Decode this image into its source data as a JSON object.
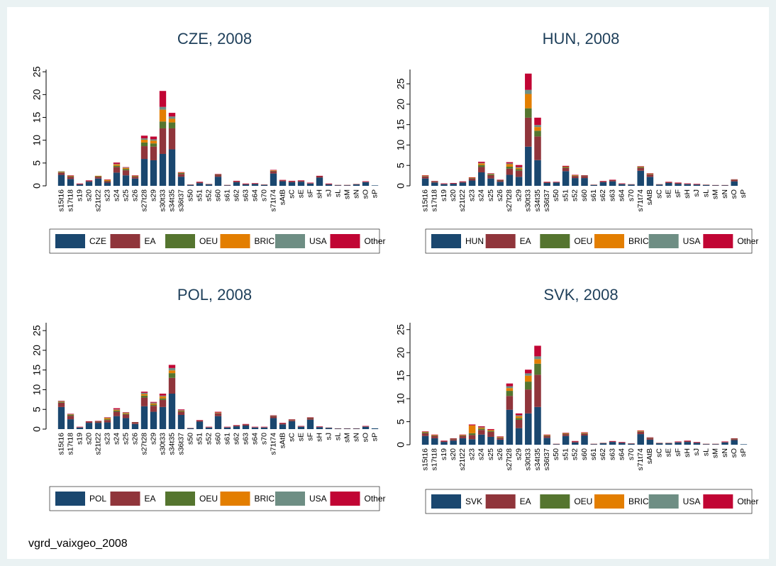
{
  "chart_data": [
    {
      "type": "bar",
      "stacked": true,
      "title": "CZE, 2008",
      "categories": [
        "s15t16",
        "s17t18",
        "s19",
        "s20",
        "s21t22",
        "s23",
        "s24",
        "s25",
        "s26",
        "s27t28",
        "s29",
        "s30t33",
        "s34t35",
        "s36t37",
        "s50",
        "s51",
        "s52",
        "s60",
        "s61",
        "s62",
        "s63",
        "s64",
        "s70",
        "s71t74",
        "sAtB",
        "sC",
        "sE",
        "sF",
        "sH",
        "sJ",
        "sL",
        "sM",
        "sN",
        "sO",
        "sP"
      ],
      "ylim": [
        0,
        25.5
      ],
      "yticks": [
        0,
        5,
        10,
        15,
        20,
        25
      ],
      "series": [
        {
          "name": "CZE",
          "color": "#1a476f",
          "values": [
            2.4,
            1.5,
            0.3,
            0.9,
            1.6,
            0.7,
            2.9,
            2.3,
            1.6,
            5.9,
            5.6,
            7.0,
            8.0,
            2.0,
            0.2,
            0.6,
            0.3,
            2.0,
            0.1,
            0.8,
            0.3,
            0.4,
            0.2,
            2.7,
            1.0,
            0.8,
            0.9,
            0.5,
            1.8,
            0.3,
            0.1,
            0.1,
            0.3,
            0.8,
            0.1
          ]
        },
        {
          "name": "EA",
          "color": "#90353b",
          "values": [
            0.5,
            0.5,
            0.1,
            0.2,
            0.4,
            0.3,
            1.2,
            1.1,
            0.4,
            2.8,
            3.0,
            5.6,
            4.6,
            0.6,
            0.1,
            0.2,
            0.1,
            0.4,
            0.1,
            0.2,
            0.1,
            0.1,
            0.1,
            0.5,
            0.2,
            0.2,
            0.2,
            0.1,
            0.3,
            0.1,
            0.1,
            0.1,
            0.1,
            0.1,
            0
          ]
        },
        {
          "name": "OEU",
          "color": "#55752f",
          "values": [
            0.1,
            0.1,
            0,
            0,
            0.1,
            0.1,
            0.3,
            0.3,
            0.1,
            0.8,
            0.7,
            1.5,
            1.3,
            0.2,
            0,
            0,
            0,
            0.1,
            0,
            0,
            0,
            0,
            0,
            0.1,
            0,
            0,
            0,
            0,
            0,
            0,
            0,
            0,
            0,
            0,
            0
          ]
        },
        {
          "name": "BRIC",
          "color": "#e37e00",
          "values": [
            0.1,
            0.1,
            0,
            0,
            0.1,
            0.2,
            0.3,
            0.2,
            0.1,
            0.6,
            0.6,
            2.6,
            0.8,
            0.1,
            0,
            0,
            0,
            0,
            0,
            0,
            0,
            0,
            0,
            0.1,
            0,
            0,
            0,
            0,
            0,
            0,
            0,
            0,
            0,
            0,
            0
          ]
        },
        {
          "name": "USA",
          "color": "#6e8e84",
          "values": [
            0.1,
            0,
            0,
            0,
            0,
            0,
            0.1,
            0.1,
            0,
            0.3,
            0.3,
            0.6,
            0.5,
            0,
            0,
            0,
            0,
            0,
            0,
            0,
            0,
            0,
            0,
            0,
            0,
            0,
            0,
            0,
            0,
            0,
            0,
            0,
            0,
            0,
            0
          ]
        },
        {
          "name": "Other",
          "color": "#c10534",
          "values": [
            0,
            0.1,
            0.1,
            0.1,
            0,
            0.1,
            0.3,
            0.1,
            0.1,
            0.6,
            0.6,
            3.5,
            0.8,
            0.1,
            0,
            0.1,
            0,
            0.1,
            0,
            0.1,
            0.1,
            0.1,
            0,
            0.1,
            0.1,
            0.1,
            0.1,
            0.1,
            0.1,
            0.1,
            0,
            0,
            0,
            0.1,
            0
          ]
        }
      ]
    },
    {
      "type": "bar",
      "stacked": true,
      "title": "HUN, 2008",
      "categories": [
        "s15t16",
        "s17t18",
        "s19",
        "s20",
        "s21t22",
        "s23",
        "s24",
        "s25",
        "s26",
        "s27t28",
        "s29",
        "s30t33",
        "s34t35",
        "s36t37",
        "s50",
        "s51",
        "s52",
        "s60",
        "s61",
        "s62",
        "s63",
        "s64",
        "s70",
        "s71t74",
        "sAtB",
        "sC",
        "sE",
        "sF",
        "sH",
        "sJ",
        "sL",
        "sM",
        "sN",
        "sO",
        "sP"
      ],
      "ylim": [
        0,
        28.5
      ],
      "yticks": [
        0,
        5,
        10,
        15,
        20,
        25
      ],
      "series": [
        {
          "name": "HUN",
          "color": "#1a476f",
          "values": [
            1.8,
            0.8,
            0.4,
            0.5,
            0.8,
            1.3,
            3.3,
            1.8,
            1.0,
            2.7,
            2.2,
            9.6,
            6.3,
            0.7,
            0.8,
            3.6,
            1.9,
            1.9,
            0.2,
            0.9,
            1.1,
            0.4,
            0.3,
            3.7,
            2.2,
            0.3,
            0.7,
            0.5,
            0.4,
            0.3,
            0.2,
            0.1,
            0.1,
            1.1,
            0
          ]
        },
        {
          "name": "EA",
          "color": "#90353b",
          "values": [
            0.5,
            0.2,
            0.1,
            0.1,
            0.2,
            0.5,
            1.3,
            0.8,
            0.3,
            1.5,
            1.5,
            7.1,
            5.8,
            0.2,
            0.1,
            0.8,
            0.5,
            0.5,
            0.1,
            0.2,
            0.3,
            0.1,
            0.1,
            0.7,
            0.6,
            0.1,
            0.2,
            0.2,
            0.1,
            0.1,
            0.1,
            0.1,
            0.1,
            0.3,
            0
          ]
        },
        {
          "name": "OEU",
          "color": "#55752f",
          "values": [
            0.1,
            0.1,
            0,
            0,
            0,
            0.1,
            0.5,
            0.2,
            0.1,
            0.5,
            0.4,
            2.3,
            1.4,
            0,
            0,
            0.2,
            0.1,
            0.1,
            0,
            0,
            0,
            0,
            0,
            0.2,
            0.1,
            0,
            0,
            0,
            0,
            0,
            0,
            0,
            0,
            0.1,
            0
          ]
        },
        {
          "name": "BRIC",
          "color": "#e37e00",
          "values": [
            0.1,
            0,
            0,
            0,
            0,
            0.1,
            0.4,
            0.1,
            0,
            0.6,
            0.3,
            3.5,
            0.9,
            0,
            0,
            0.1,
            0.1,
            0,
            0,
            0,
            0,
            0,
            0,
            0.1,
            0.1,
            0,
            0,
            0,
            0,
            0,
            0,
            0,
            0,
            0,
            0
          ]
        },
        {
          "name": "USA",
          "color": "#6e8e84",
          "values": [
            0,
            0,
            0,
            0,
            0,
            0,
            0.1,
            0.1,
            0,
            0.2,
            0.2,
            1.0,
            0.5,
            0,
            0,
            0,
            0,
            0,
            0,
            0,
            0,
            0,
            0,
            0,
            0,
            0,
            0,
            0,
            0,
            0,
            0,
            0,
            0,
            0,
            0
          ]
        },
        {
          "name": "Other",
          "color": "#c10534",
          "values": [
            0.1,
            0.1,
            0.1,
            0.1,
            0.1,
            0.1,
            0.3,
            0.1,
            0.1,
            0.3,
            0.5,
            4.0,
            1.8,
            0.1,
            0.1,
            0.2,
            0.1,
            0.1,
            0,
            0.1,
            0.1,
            0.1,
            0,
            0.1,
            0.1,
            0,
            0.1,
            0.1,
            0.1,
            0.1,
            0,
            0,
            0,
            0.1,
            0
          ]
        }
      ]
    },
    {
      "type": "bar",
      "stacked": true,
      "title": "POL, 2008",
      "categories": [
        "s15t16",
        "s17t18",
        "s19",
        "s20",
        "s21t22",
        "s23",
        "s24",
        "s25",
        "s26",
        "s27t28",
        "s29",
        "s30t33",
        "s34t35",
        "s36t37",
        "s50",
        "s51",
        "s52",
        "s60",
        "s61",
        "s62",
        "s63",
        "s64",
        "s70",
        "s71t74",
        "sAtB",
        "sC",
        "sE",
        "sF",
        "sH",
        "sJ",
        "sL",
        "sM",
        "sN",
        "sO",
        "sP"
      ],
      "ylim": [
        0,
        27
      ],
      "yticks": [
        0,
        5,
        10,
        15,
        20,
        25
      ],
      "series": [
        {
          "name": "POL",
          "color": "#1a476f",
          "values": [
            5.6,
            2.5,
            0.4,
            1.6,
            1.6,
            1.7,
            3.3,
            2.8,
            1.3,
            5.8,
            4.4,
            5.6,
            9.0,
            3.6,
            0.2,
            1.9,
            0.4,
            3.3,
            0.4,
            0.7,
            0.9,
            0.4,
            0.4,
            2.8,
            1.2,
            2.0,
            0.6,
            2.4,
            0.5,
            0.3,
            0.1,
            0.1,
            0.1,
            0.6,
            0.2
          ]
        },
        {
          "name": "EA",
          "color": "#90353b",
          "values": [
            1.1,
            0.9,
            0.1,
            0.3,
            0.3,
            0.6,
            1.1,
            0.9,
            0.3,
            2.2,
            1.5,
            1.8,
            4.0,
            0.8,
            0.1,
            0.3,
            0.1,
            0.7,
            0.1,
            0.2,
            0.3,
            0.1,
            0.1,
            0.5,
            0.3,
            0.3,
            0.1,
            0.4,
            0.1,
            0.1,
            0.1,
            0.1,
            0.1,
            0.1,
            0
          ]
        },
        {
          "name": "OEU",
          "color": "#55752f",
          "values": [
            0.2,
            0.2,
            0,
            0,
            0.1,
            0.2,
            0.3,
            0.2,
            0.1,
            0.5,
            0.3,
            0.4,
            1.2,
            0.2,
            0,
            0,
            0,
            0.1,
            0,
            0,
            0,
            0,
            0,
            0.1,
            0,
            0.1,
            0,
            0.1,
            0,
            0,
            0,
            0,
            0,
            0,
            0
          ]
        },
        {
          "name": "BRIC",
          "color": "#e37e00",
          "values": [
            0.1,
            0.1,
            0,
            0,
            0,
            0.3,
            0.2,
            0.2,
            0,
            0.4,
            0.3,
            0.5,
            0.7,
            0.1,
            0,
            0,
            0,
            0.1,
            0,
            0,
            0,
            0,
            0,
            0,
            0,
            0,
            0,
            0,
            0,
            0,
            0,
            0,
            0,
            0,
            0
          ]
        },
        {
          "name": "USA",
          "color": "#6e8e84",
          "values": [
            0.1,
            0.1,
            0,
            0,
            0,
            0.1,
            0.1,
            0.1,
            0,
            0.3,
            0.2,
            0.2,
            0.6,
            0.1,
            0,
            0,
            0,
            0,
            0,
            0,
            0,
            0,
            0,
            0,
            0,
            0,
            0,
            0,
            0,
            0,
            0,
            0,
            0,
            0,
            0
          ]
        },
        {
          "name": "Other",
          "color": "#c10534",
          "values": [
            0.1,
            0.1,
            0.1,
            0.1,
            0.1,
            0.1,
            0.3,
            0.1,
            0.1,
            0.3,
            0.2,
            0.5,
            0.8,
            0.2,
            0,
            0.1,
            0.1,
            0.2,
            0.1,
            0.1,
            0.1,
            0.1,
            0.1,
            0.1,
            0.1,
            0.1,
            0.1,
            0.1,
            0.1,
            0,
            0,
            0,
            0,
            0.1,
            0
          ]
        }
      ]
    },
    {
      "type": "bar",
      "stacked": true,
      "title": "SVK, 2008",
      "categories": [
        "s15t16",
        "s17t18",
        "s19",
        "s20",
        "s21t22",
        "s23",
        "s24",
        "s25",
        "s26",
        "s27t28",
        "s29",
        "s30t33",
        "s34t35",
        "s36t37",
        "s50",
        "s51",
        "s52",
        "s60",
        "s61",
        "s62",
        "s63",
        "s64",
        "s70",
        "s71t74",
        "sAtB",
        "sC",
        "sE",
        "sF",
        "sH",
        "sJ",
        "sL",
        "sM",
        "sN",
        "sO",
        "sP"
      ],
      "ylim": [
        0,
        26.5
      ],
      "yticks": [
        0,
        5,
        10,
        15,
        20,
        25
      ],
      "series": [
        {
          "name": "SVK",
          "color": "#1a476f",
          "values": [
            1.9,
            1.4,
            0.6,
            0.9,
            1.4,
            1.2,
            2.2,
            1.7,
            1.1,
            7.6,
            3.6,
            6.8,
            8.2,
            1.5,
            0.1,
            1.9,
            0.5,
            2.0,
            0.1,
            0.3,
            0.6,
            0.4,
            0.2,
            2.3,
            1.1,
            0.3,
            0.3,
            0.5,
            0.6,
            0.4,
            0.1,
            0.1,
            0.5,
            1.0,
            0.1
          ]
        },
        {
          "name": "EA",
          "color": "#90353b",
          "values": [
            0.6,
            0.5,
            0.2,
            0.3,
            0.5,
            0.9,
            1.0,
            1.1,
            0.4,
            3.0,
            1.8,
            5.2,
            7.0,
            0.4,
            0.1,
            0.4,
            0.2,
            0.4,
            0.1,
            0.1,
            0.1,
            0.1,
            0.1,
            0.5,
            0.3,
            0.1,
            0.1,
            0.1,
            0.2,
            0.1,
            0.1,
            0.1,
            0.1,
            0.2,
            0
          ]
        },
        {
          "name": "OEU",
          "color": "#55752f",
          "values": [
            0.2,
            0.1,
            0,
            0.1,
            0.1,
            0.4,
            0.3,
            0.2,
            0.1,
            1.1,
            0.4,
            1.7,
            2.4,
            0.1,
            0,
            0.1,
            0,
            0.1,
            0,
            0,
            0,
            0,
            0,
            0.1,
            0.1,
            0,
            0,
            0,
            0,
            0,
            0,
            0,
            0,
            0.1,
            0
          ]
        },
        {
          "name": "BRIC",
          "color": "#e37e00",
          "values": [
            0.1,
            0.1,
            0,
            0,
            0.1,
            1.7,
            0.2,
            0.2,
            0.1,
            0.6,
            0.4,
            1.3,
            1.0,
            0.1,
            0,
            0.1,
            0,
            0.1,
            0,
            0,
            0,
            0,
            0,
            0.1,
            0,
            0,
            0,
            0,
            0,
            0,
            0,
            0,
            0,
            0,
            0
          ]
        },
        {
          "name": "USA",
          "color": "#6e8e84",
          "values": [
            0,
            0,
            0,
            0,
            0,
            0,
            0.1,
            0,
            0,
            0.4,
            0.2,
            0.5,
            0.6,
            0,
            0,
            0,
            0,
            0,
            0,
            0,
            0,
            0,
            0,
            0,
            0,
            0,
            0,
            0,
            0,
            0,
            0,
            0,
            0,
            0,
            0
          ]
        },
        {
          "name": "Other",
          "color": "#c10534",
          "values": [
            0.1,
            0.1,
            0.1,
            0.1,
            0.1,
            0.2,
            0.2,
            0.2,
            0.1,
            0.6,
            0.4,
            0.8,
            2.3,
            0.1,
            0,
            0.1,
            0.1,
            0.1,
            0,
            0,
            0.1,
            0.1,
            0,
            0.1,
            0.1,
            0,
            0,
            0.1,
            0.1,
            0.1,
            0,
            0,
            0.1,
            0.1,
            0
          ]
        }
      ]
    }
  ],
  "caption": "vgrd_vaixgeo_2008"
}
